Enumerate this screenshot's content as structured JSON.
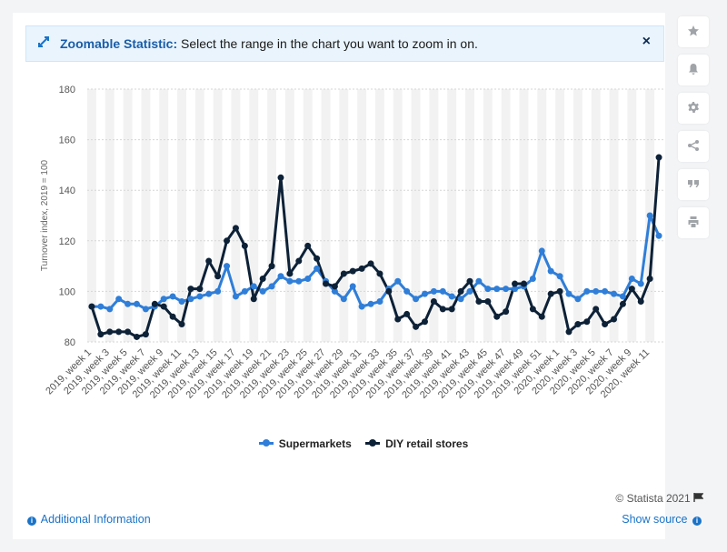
{
  "banner": {
    "title": "Zoomable Statistic:",
    "text": " Select the range in the chart you want to zoom in on.",
    "close": "×"
  },
  "sidebar": {
    "tools": [
      "star-icon",
      "bell-icon",
      "gear-icon",
      "share-icon",
      "quote-icon",
      "print-icon"
    ]
  },
  "footer": {
    "credit": "© Statista 2021",
    "additional_info": "Additional Information",
    "show_source": "Show source"
  },
  "chart_data": {
    "type": "line",
    "ylabel": "Turnover index, 2019 = 100",
    "xlabel": "",
    "ylim": [
      80,
      180
    ],
    "yticks": [
      80,
      100,
      120,
      140,
      160,
      180
    ],
    "grid": true,
    "legend_position": "bottom",
    "categories": [
      "2019, week 1",
      "2019, week 2",
      "2019, week 3",
      "2019, week 4",
      "2019, week 5",
      "2019, week 6",
      "2019, week 7",
      "2019, week 8",
      "2019, week 9",
      "2019, week 10",
      "2019, week 11",
      "2019, week 12",
      "2019, week 13",
      "2019, week 14",
      "2019, week 15",
      "2019, week 16",
      "2019, week 17",
      "2019, week 18",
      "2019, week 19",
      "2019, week 20",
      "2019, week 21",
      "2019, week 22",
      "2019, week 23",
      "2019, week 24",
      "2019, week 25",
      "2019, week 26",
      "2019, week 27",
      "2019, week 28",
      "2019, week 29",
      "2019, week 30",
      "2019, week 31",
      "2019, week 32",
      "2019, week 33",
      "2019, week 34",
      "2019, week 35",
      "2019, week 36",
      "2019, week 37",
      "2019, week 38",
      "2019, week 39",
      "2019, week 40",
      "2019, week 41",
      "2019, week 42",
      "2019, week 43",
      "2019, week 44",
      "2019, week 45",
      "2019, week 46",
      "2019, week 47",
      "2019, week 48",
      "2019, week 49",
      "2019, week 50",
      "2019, week 51",
      "2019, week 52",
      "2020, week 1",
      "2020, week 2",
      "2020, week 3",
      "2020, week 4",
      "2020, week 5",
      "2020, week 6",
      "2020, week 7",
      "2020, week 8",
      "2020, week 9",
      "2020, week 10",
      "2020, week 11",
      "2020, week 12"
    ],
    "tick_labels": [
      "2019, week 1",
      "2019, week 3",
      "2019, week 5",
      "2019, week 7",
      "2019, week 9",
      "2019, week 11",
      "2019, week 13",
      "2019, week 15",
      "2019, week 17",
      "2019, week 19",
      "2019, week 21",
      "2019, week 23",
      "2019, week 25",
      "2019, week 27",
      "2019, week 29",
      "2019, week 31",
      "2019, week 33",
      "2019, week 35",
      "2019, week 37",
      "2019, week 39",
      "2019, week 41",
      "2019, week 43",
      "2019, week 45",
      "2019, week 47",
      "2019, week 49",
      "2019, week 51",
      "2020, week 1",
      "2020, week 3",
      "2020, week 5",
      "2020, week 7",
      "2020, week 9",
      "2020, week 11"
    ],
    "series": [
      {
        "name": "Supermarkets",
        "color": "#2f7ed8",
        "values": [
          94,
          94,
          93,
          97,
          95,
          95,
          93,
          94,
          97,
          98,
          96,
          97,
          98,
          99,
          100,
          110,
          98,
          100,
          102,
          100,
          102,
          106,
          104,
          104,
          105,
          109,
          104,
          100,
          97,
          102,
          94,
          95,
          96,
          101,
          104,
          100,
          97,
          99,
          100,
          100,
          98,
          97,
          100,
          104,
          101,
          101,
          101,
          101,
          102,
          105,
          116,
          108,
          106,
          99,
          97,
          100,
          100,
          100,
          99,
          98,
          105,
          103,
          130,
          122
        ]
      },
      {
        "name": "DIY retail stores",
        "color": "#0d2137",
        "values": [
          94,
          83,
          84,
          84,
          84,
          82,
          83,
          95,
          94,
          90,
          87,
          101,
          101,
          112,
          106,
          120,
          125,
          118,
          97,
          105,
          110,
          145,
          107,
          112,
          118,
          113,
          103,
          102,
          107,
          108,
          109,
          111,
          107,
          100,
          89,
          91,
          86,
          88,
          96,
          93,
          93,
          100,
          104,
          96,
          96,
          90,
          92,
          103,
          103,
          93,
          90,
          99,
          100,
          84,
          87,
          88,
          93,
          87,
          89,
          95,
          101,
          96,
          105,
          153
        ]
      }
    ]
  }
}
